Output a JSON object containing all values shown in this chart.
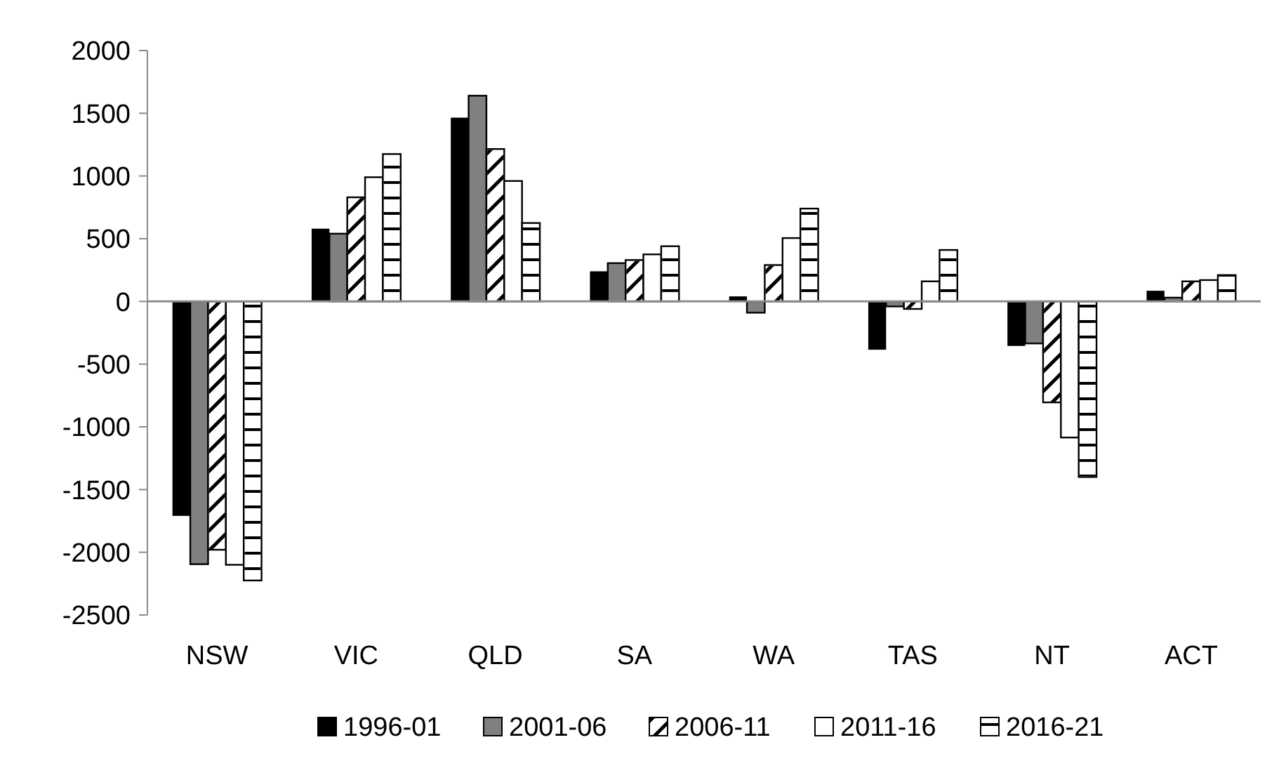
{
  "chart_data": {
    "type": "bar",
    "categories": [
      "NSW",
      "VIC",
      "QLD",
      "SA",
      "WA",
      "TAS",
      "NT",
      "ACT"
    ],
    "series": [
      {
        "name": "1996-01",
        "color": "#000000",
        "values": [
          -1710,
          580,
          1465,
          240,
          40,
          -385,
          -355,
          85
        ]
      },
      {
        "name": "2001-06",
        "color": "#808080",
        "values": [
          -2095,
          540,
          1640,
          305,
          -90,
          -40,
          -335,
          30
        ]
      },
      {
        "name": "2006-11",
        "color": "#ffffff",
        "values": [
          -1980,
          830,
          1215,
          330,
          290,
          -60,
          -805,
          160
        ]
      },
      {
        "name": "2011-16",
        "color": "#ffffff",
        "values": [
          -2100,
          990,
          960,
          375,
          505,
          160,
          -1085,
          170
        ]
      },
      {
        "name": "2016-21",
        "color": "#ffffff",
        "values": [
          -2225,
          1175,
          625,
          440,
          740,
          410,
          -1400,
          210
        ]
      }
    ],
    "ylim": [
      -2500,
      2000
    ],
    "yticks": [
      -2500,
      -2000,
      -1500,
      -1000,
      -500,
      0,
      500,
      1000,
      1500,
      2000
    ],
    "legend": "bottom"
  }
}
